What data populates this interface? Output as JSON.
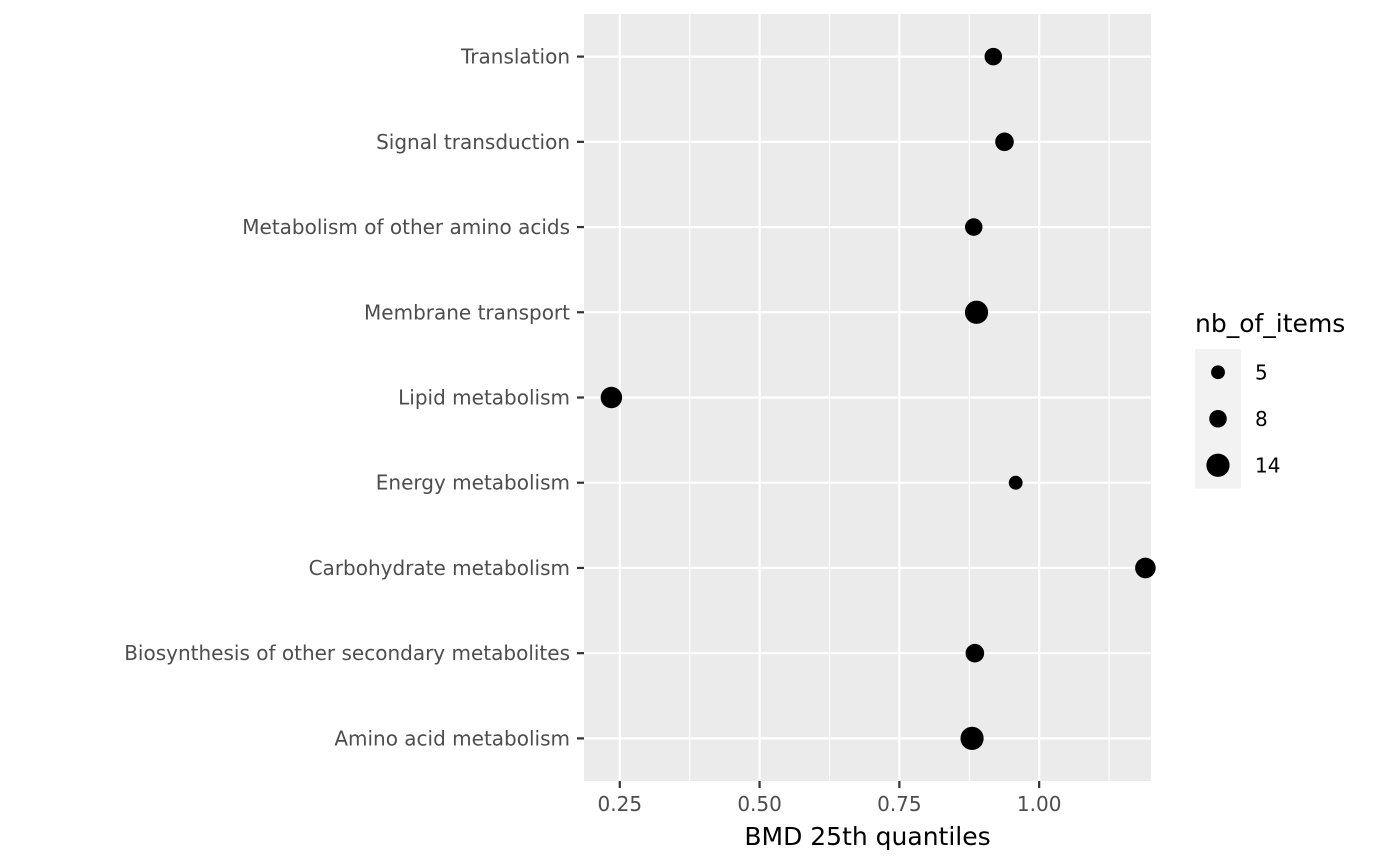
{
  "chart_data": {
    "type": "scatter",
    "xlabel": "BMD 25th quantiles",
    "ylabel": "",
    "xlim": [
      0.186,
      1.2
    ],
    "x_ticks": [
      0.25,
      0.5,
      0.75,
      1.0
    ],
    "x_tick_labels": [
      "0.25",
      "0.50",
      "0.75",
      "1.00"
    ],
    "x_minor_ticks": [
      0.375,
      0.625,
      0.875,
      1.125
    ],
    "categories": [
      "Amino acid metabolism",
      "Biosynthesis of other secondary metabolites",
      "Carbohydrate metabolism",
      "Energy metabolism",
      "Lipid metabolism",
      "Membrane transport",
      "Metabolism of other amino acids",
      "Signal transduction",
      "Translation"
    ],
    "points": [
      {
        "category": "Amino acid metabolism",
        "x": 0.88,
        "size": 14
      },
      {
        "category": "Biosynthesis of other secondary metabolites",
        "x": 0.885,
        "size": 9
      },
      {
        "category": "Carbohydrate metabolism",
        "x": 1.19,
        "size": 11
      },
      {
        "category": "Energy metabolism",
        "x": 0.958,
        "size": 5
      },
      {
        "category": "Lipid metabolism",
        "x": 0.235,
        "size": 12
      },
      {
        "category": "Membrane transport",
        "x": 0.888,
        "size": 14
      },
      {
        "category": "Metabolism of other amino acids",
        "x": 0.883,
        "size": 8
      },
      {
        "category": "Signal transduction",
        "x": 0.938,
        "size": 9
      },
      {
        "category": "Translation",
        "x": 0.918,
        "size": 8
      }
    ],
    "legend": {
      "title": "nb_of_items",
      "placement": "right",
      "entries": [
        {
          "label": "5",
          "size": 5
        },
        {
          "label": "8",
          "size": 8
        },
        {
          "label": "14",
          "size": 14
        }
      ]
    },
    "colors": {
      "panel_bg": "#ebebeb",
      "grid": "#ffffff",
      "point": "#000000",
      "tick_text": "#4d4d4d",
      "tick_mark": "#333333"
    },
    "grid": true
  }
}
